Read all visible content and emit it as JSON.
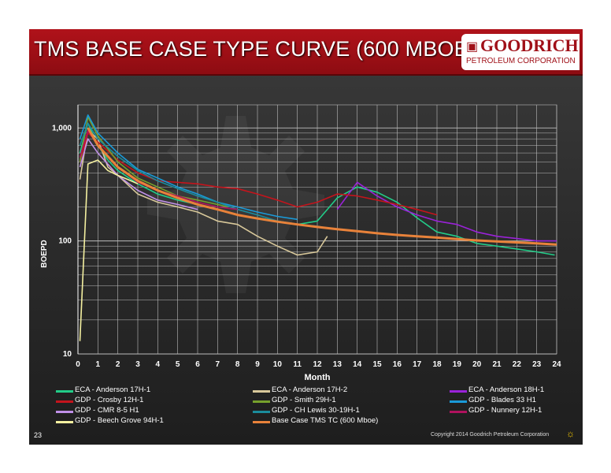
{
  "slide": {
    "title": "TMS BASE CASE TYPE CURVE (600 MBOE)",
    "page_number": "23",
    "copyright": "Copyright 2014 Goodrich Petroleum Corporation"
  },
  "logo": {
    "name": "GOODRICH",
    "subtitle": "PETROLEUM CORPORATION",
    "brand_color": "#a01018"
  },
  "chart_data": {
    "type": "line",
    "xlabel": "Month",
    "ylabel": "BOEPD",
    "xlim": [
      0,
      24
    ],
    "ylim": [
      10,
      1600
    ],
    "yscale": "log",
    "grid": true,
    "x_ticks": [
      "0",
      "1",
      "2",
      "3",
      "4",
      "5",
      "6",
      "7",
      "8",
      "9",
      "10",
      "11",
      "12",
      "13",
      "14",
      "15",
      "16",
      "17",
      "18",
      "19",
      "20",
      "21",
      "22",
      "23",
      "24"
    ],
    "y_ticks": [
      {
        "value": 10,
        "label": "10"
      },
      {
        "value": 100,
        "label": "100"
      },
      {
        "value": 1000,
        "label": "1,000"
      }
    ],
    "legend_position": "bottom",
    "series": [
      {
        "name": "ECA - Anderson 17H-1",
        "color": "#22cc88",
        "x": [
          0.1,
          0.5,
          1,
          1.5,
          2,
          3,
          4,
          5,
          6,
          7,
          8,
          9,
          10,
          11,
          12,
          13,
          14,
          15,
          16,
          17,
          18,
          19,
          20,
          21,
          22,
          23,
          23.9
        ],
        "y": [
          600,
          1100,
          700,
          520,
          420,
          320,
          260,
          230,
          210,
          190,
          170,
          160,
          150,
          140,
          150,
          240,
          300,
          270,
          220,
          160,
          120,
          110,
          95,
          90,
          85,
          80,
          75
        ]
      },
      {
        "name": "ECA - Anderson 17H-2",
        "color": "#d8c89a",
        "x": [
          0.1,
          0.5,
          1,
          1.5,
          2,
          3,
          4,
          5,
          6,
          7,
          8,
          9,
          10,
          11,
          12,
          12.5
        ],
        "y": [
          350,
          950,
          800,
          450,
          380,
          260,
          220,
          200,
          180,
          150,
          140,
          110,
          90,
          75,
          80,
          110
        ]
      },
      {
        "name": "ECA - Anderson 18H-1",
        "color": "#9a22d8",
        "x": [
          13,
          14,
          15,
          16,
          17,
          18,
          19,
          20,
          21,
          22,
          23,
          24
        ],
        "y": [
          190,
          330,
          250,
          200,
          170,
          150,
          140,
          120,
          110,
          105,
          100,
          100
        ]
      },
      {
        "name": "GDP - Crosby 12H-1",
        "color": "#c4141c",
        "x": [
          0.1,
          0.5,
          1,
          2,
          3,
          4,
          5,
          6,
          7,
          8,
          9,
          10,
          11,
          12,
          13,
          14,
          15,
          16,
          17,
          18
        ],
        "y": [
          500,
          900,
          750,
          520,
          400,
          340,
          330,
          320,
          300,
          290,
          260,
          230,
          200,
          220,
          260,
          250,
          230,
          210,
          190,
          170
        ]
      },
      {
        "name": "GDP - Smith 29H-1",
        "color": "#76a02c",
        "x": [
          0.1,
          0.5,
          1,
          2,
          3,
          4,
          5,
          6,
          7,
          7.5
        ],
        "y": [
          500,
          1250,
          850,
          500,
          360,
          300,
          250,
          230,
          210,
          200
        ]
      },
      {
        "name": "GDP - Blades 33 H1",
        "color": "#1a9ad8",
        "x": [
          0.1,
          0.5,
          1,
          2,
          3,
          4,
          5,
          6,
          7,
          8,
          9,
          10,
          11
        ],
        "y": [
          800,
          1300,
          900,
          600,
          430,
          360,
          300,
          260,
          220,
          200,
          180,
          165,
          155
        ]
      },
      {
        "name": "GDP - CMR 8-5 H1",
        "color": "#c090e8",
        "x": [
          0.1,
          0.5,
          1,
          2,
          3,
          4,
          5,
          6
        ],
        "y": [
          450,
          800,
          600,
          380,
          280,
          230,
          210,
          190
        ]
      },
      {
        "name": "GDP - CH Lewis 30-19H-1",
        "color": "#1a8c9c",
        "x": [
          0.1,
          0.5,
          1,
          2,
          3,
          4,
          5,
          6,
          7,
          8,
          9,
          10,
          11,
          12,
          12.5
        ],
        "y": [
          700,
          1100,
          800,
          560,
          420,
          340,
          290,
          250,
          220,
          190,
          170,
          150,
          140,
          135,
          130
        ]
      },
      {
        "name": "GDP - Nunnery 12H-1",
        "color": "#b0125e",
        "x": [
          0.1,
          0.5,
          1,
          2,
          3,
          4,
          5,
          6,
          7,
          8
        ],
        "y": [
          550,
          950,
          700,
          450,
          330,
          280,
          250,
          220,
          200,
          190
        ]
      },
      {
        "name": "GDP - Beech Grove 94H-1",
        "color": "#f4f0a0",
        "x": [
          0.1,
          0.5,
          1,
          1.5,
          2,
          2.5,
          3
        ],
        "y": [
          13,
          480,
          520,
          420,
          380,
          350,
          320
        ]
      },
      {
        "name": "Base Case TMS TC (600 Mboe)",
        "color": "#e8823a",
        "x": [
          0.5,
          1,
          1.5,
          2,
          3,
          4,
          5,
          6,
          7,
          8,
          9,
          10,
          11,
          12,
          13,
          14,
          15,
          16,
          17,
          18,
          19,
          20,
          21,
          22,
          23,
          24
        ],
        "y": [
          1000,
          700,
          560,
          450,
          340,
          280,
          240,
          210,
          190,
          170,
          158,
          148,
          140,
          133,
          127,
          122,
          117,
          113,
          110,
          107,
          104,
          101,
          99,
          97,
          95,
          93
        ]
      }
    ]
  }
}
